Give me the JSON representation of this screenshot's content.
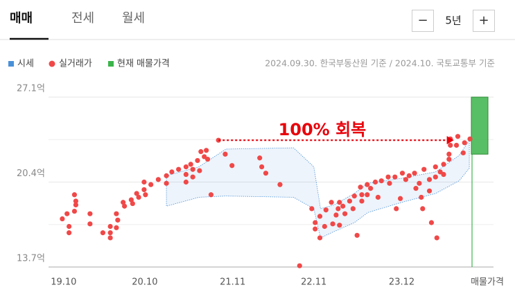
{
  "tabs": [
    "매매",
    "전세",
    "월세"
  ],
  "selected_tab": 0,
  "period": {
    "minus": "−",
    "label": "5년",
    "plus": "+"
  },
  "chart_data": {
    "type": "scatter",
    "source_note": "2024.09.30. 한국부동산원 기준 / 2024.10. 국토교통부 기준",
    "ylim": [
      13.7,
      27.1
    ],
    "yticks": [
      {
        "value": 13.7,
        "label": "13.7억"
      },
      {
        "value": 20.4,
        "label": "20.4억"
      },
      {
        "value": 27.1,
        "label": "27.1억"
      }
    ],
    "minor_yticks": [
      17.05,
      23.75
    ],
    "xlim": [
      -0.7,
      60.3
    ],
    "xticks": [
      {
        "value": 0,
        "label": "19.10"
      },
      {
        "value": 12,
        "label": "20.10"
      },
      {
        "value": 25,
        "label": "21.11"
      },
      {
        "value": 37,
        "label": "22.11"
      },
      {
        "value": 50,
        "label": "23.12"
      }
    ],
    "x_end_label": "매물가격",
    "annotation": {
      "text": "100% 회복",
      "value": 23.7,
      "x_from": 22.9,
      "x_to": 57.7,
      "color": "#e8000b"
    },
    "series": [
      {
        "name": "시세",
        "color": "#4a90d9",
        "x": [
          15.2,
          20,
          24,
          34,
          37,
          38,
          40,
          43,
          45,
          50,
          55,
          58.5,
          60
        ],
        "upper": [
          20.9,
          21.6,
          23.0,
          23.1,
          21.6,
          18.3,
          18.6,
          19.5,
          20.3,
          20.7,
          21.2,
          22.5,
          23.7
        ],
        "lower": [
          18.5,
          19.2,
          19.3,
          19.2,
          18.3,
          16.0,
          16.5,
          17.2,
          18.0,
          18.8,
          19.5,
          20.5,
          21.5
        ]
      },
      {
        "name": "실거래가",
        "color": "#f04848",
        "x": [
          -0.2,
          0.5,
          0.8,
          0.8,
          1.6,
          1.8,
          1.8,
          1.6,
          3.9,
          3.9,
          5.8,
          6.9,
          6.9,
          6.9,
          7.8,
          8.0,
          7.8,
          8.8,
          9.0,
          10.0,
          10.2,
          10.8,
          11.1,
          11.9,
          12.1,
          11.9,
          12.9,
          14.0,
          15.2,
          15.2,
          16.0,
          17.0,
          18.1,
          18.1,
          18.1,
          18.8,
          19.1,
          19.1,
          19.8,
          20.1,
          20.3,
          20.8,
          21.1,
          21.3,
          21.8,
          22.9,
          23.9,
          24.9,
          29.0,
          29.3,
          29.9,
          32.0,
          34.9,
          36.7,
          37.2,
          37.2,
          37.9,
          37.9,
          38.6,
          38.8,
          39.6,
          39.8,
          40.3,
          40.6,
          40.8,
          40.8,
          41.3,
          41.6,
          42.3,
          42.8,
          43.0,
          43.4,
          43.9,
          44.1,
          44.1,
          44.9,
          44.9,
          45.4,
          46.1,
          46.5,
          47.0,
          48.0,
          48.2,
          49.0,
          49.2,
          49.8,
          50.1,
          50.6,
          51.1,
          51.9,
          52.1,
          52.6,
          52.9,
          53.1,
          53.3,
          54.1,
          54.1,
          54.4,
          55.0,
          55.0,
          55.2,
          55.7,
          56.2,
          56.2,
          57.0,
          57.0,
          57.2,
          57.2,
          58.1,
          58.3,
          59.1,
          59.3,
          60.1
        ],
        "values": [
          17.5,
          17.9,
          16.9,
          16.4,
          19.4,
          18.9,
          18.6,
          18.1,
          17.9,
          17.1,
          16.4,
          16.9,
          16.4,
          16.0,
          17.9,
          17.4,
          16.8,
          18.8,
          18.5,
          19.0,
          18.7,
          19.5,
          19.2,
          19.8,
          19.4,
          20.4,
          20.2,
          20.6,
          20.9,
          20.3,
          21.2,
          21.4,
          21.6,
          21.0,
          20.4,
          21.8,
          21.4,
          20.8,
          22.1,
          21.3,
          22.8,
          22.4,
          22.9,
          22.2,
          19.4,
          23.7,
          22.6,
          21.7,
          22.3,
          21.6,
          21.1,
          20.2,
          13.8,
          18.3,
          17.2,
          16.7,
          17.7,
          16.0,
          16.9,
          18.2,
          18.8,
          17.1,
          17.8,
          18.3,
          18.8,
          17.0,
          18.5,
          17.9,
          18.9,
          18.3,
          19.3,
          16.2,
          20.0,
          19.4,
          18.9,
          20.2,
          19.4,
          19.9,
          20.4,
          19.2,
          20.5,
          20.8,
          20.3,
          20.8,
          18.3,
          19.1,
          21.1,
          20.6,
          20.9,
          21.1,
          19.9,
          20.3,
          19.2,
          18.3,
          21.4,
          20.6,
          19.7,
          17.2,
          21.6,
          20.8,
          16.0,
          21.2,
          21.8,
          21.0,
          22.2,
          22.6,
          23.3,
          23.8,
          23.3,
          24.0,
          22.7,
          23.5,
          23.8
        ]
      },
      {
        "name": "현재 매물가격",
        "color": "#3cb44b",
        "low": 22.6,
        "high": 27.1
      }
    ]
  }
}
